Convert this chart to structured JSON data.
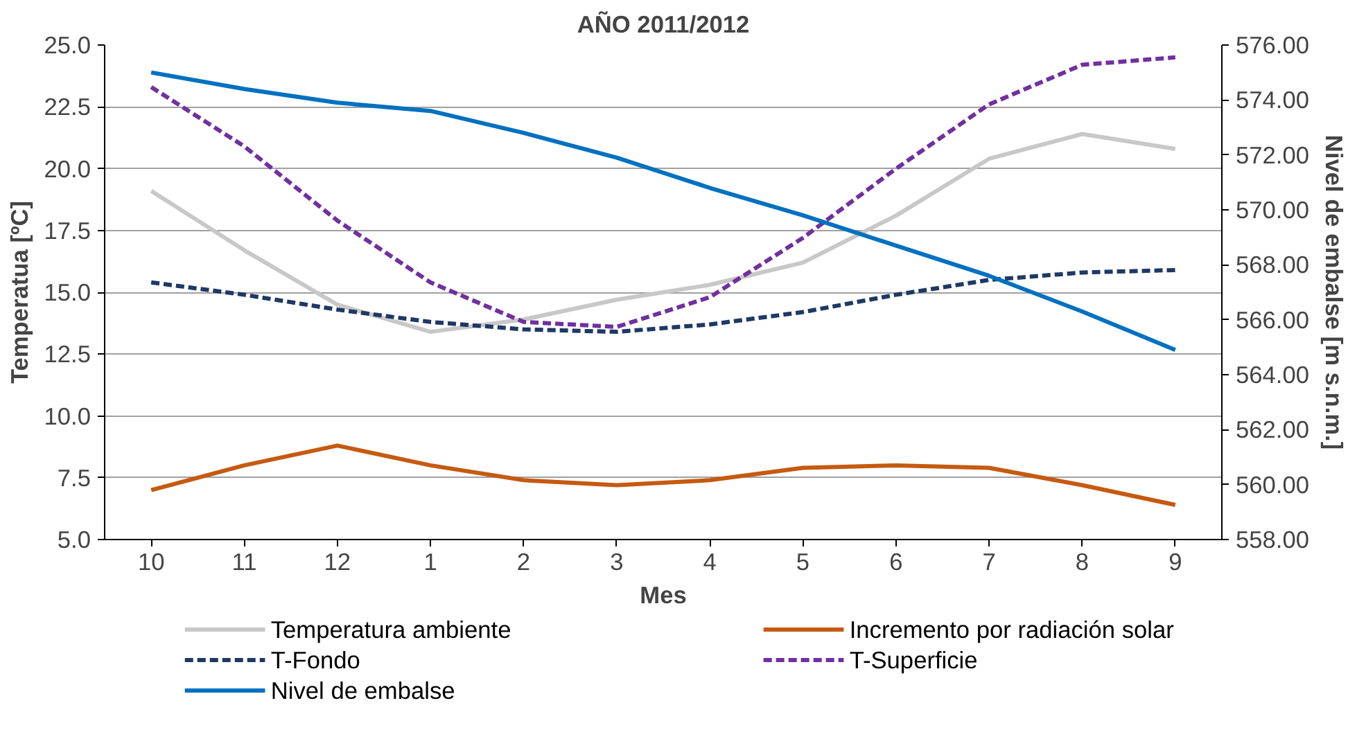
{
  "chart_data": {
    "type": "line",
    "title": "AÑO 2011/2012",
    "xlabel": "Mes",
    "ylabel": "Temperatua [ºC]",
    "y2label": "Nivel de embalse [m s.n.m.]",
    "categories": [
      "10",
      "11",
      "12",
      "1",
      "2",
      "3",
      "4",
      "5",
      "6",
      "7",
      "8",
      "9"
    ],
    "series": [
      {
        "name": "Temperatura ambiente",
        "color": "#c8c8c8",
        "line_style": "solid",
        "values": [
          19.1,
          16.7,
          14.5,
          13.4,
          13.9,
          14.7,
          15.3,
          16.2,
          18.1,
          20.4,
          21.4,
          20.8
        ]
      },
      {
        "name": "Incremento por radiación solar",
        "color": "#c55a11",
        "line_style": "solid",
        "values": [
          7.0,
          8.0,
          8.8,
          8.0,
          7.4,
          7.2,
          7.4,
          7.9,
          8.0,
          7.9,
          7.2,
          6.4
        ]
      },
      {
        "name": "T-Fondo",
        "color": "#1f3864",
        "line_style": "dashed",
        "values": [
          15.4,
          14.9,
          14.3,
          13.8,
          13.5,
          13.4,
          13.7,
          14.2,
          14.9,
          15.5,
          15.8,
          15.9
        ]
      },
      {
        "name": "T-Superficie",
        "color": "#7030a0",
        "line_style": "dashed",
        "values": [
          23.3,
          20.9,
          17.9,
          15.4,
          13.8,
          13.6,
          14.8,
          17.2,
          20.0,
          22.6,
          24.2,
          24.5
        ]
      },
      {
        "name": "Nivel de embalse",
        "color": "#0070c0",
        "line_style": "solid",
        "axis": "y2",
        "values": [
          575.0,
          574.4,
          573.9,
          573.6,
          572.8,
          571.9,
          570.8,
          569.8,
          568.7,
          567.6,
          566.3,
          564.9
        ]
      }
    ],
    "ylim": [
      5,
      25
    ],
    "yticks": [
      {
        "value": 5,
        "label": "5.0"
      },
      {
        "value": 7.5,
        "label": "7.5"
      },
      {
        "value": 10,
        "label": "10.0"
      },
      {
        "value": 12.5,
        "label": "12.5"
      },
      {
        "value": 15,
        "label": "15.0"
      },
      {
        "value": 17.5,
        "label": "17.5"
      },
      {
        "value": 20,
        "label": "20.0"
      },
      {
        "value": 22.5,
        "label": "22.5"
      },
      {
        "value": 25,
        "label": "25.0"
      }
    ],
    "y2lim": [
      558,
      576
    ],
    "y2ticks": [
      {
        "value": 558,
        "label": "558.00"
      },
      {
        "value": 560,
        "label": "560.00"
      },
      {
        "value": 562,
        "label": "562.00"
      },
      {
        "value": 564,
        "label": "564.00"
      },
      {
        "value": 566,
        "label": "566.00"
      },
      {
        "value": 568,
        "label": "568.00"
      },
      {
        "value": 570,
        "label": "570.00"
      },
      {
        "value": 572,
        "label": "572.00"
      },
      {
        "value": 574,
        "label": "574.00"
      },
      {
        "value": 576,
        "label": "576.00"
      }
    ],
    "grid": "y",
    "legend": "bottom",
    "marker": "none"
  }
}
